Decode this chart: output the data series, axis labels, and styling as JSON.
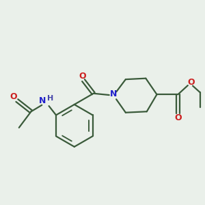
{
  "bg_color": "#eaf0ea",
  "bond_color": "#3a5a3a",
  "N_color": "#2020cc",
  "O_color": "#cc2020",
  "H_color": "#4444aa",
  "line_width": 1.6,
  "figsize": [
    3.0,
    3.0
  ],
  "dpi": 100,
  "xlim": [
    0,
    10
  ],
  "ylim": [
    0,
    10
  ]
}
